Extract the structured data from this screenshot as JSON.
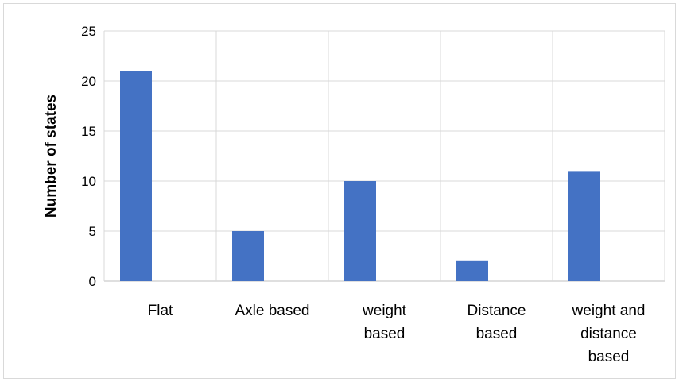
{
  "chart_data": {
    "type": "bar",
    "title": "",
    "xlabel": "",
    "ylabel": "Number of states",
    "categories": [
      [
        "Flat"
      ],
      [
        "Axle based"
      ],
      [
        "weight",
        "based"
      ],
      [
        "Distance",
        "based"
      ],
      [
        "weight and",
        "distance",
        "based"
      ]
    ],
    "values": [
      21,
      5,
      10,
      2,
      11
    ],
    "ylim": [
      0,
      25
    ],
    "yticks": [
      0,
      5,
      10,
      15,
      20,
      25
    ],
    "grid": true,
    "legend": "none",
    "bar_color": "#4472c4",
    "grid_color": "#d9d9d9",
    "axis_color": "#bfbfbf"
  }
}
